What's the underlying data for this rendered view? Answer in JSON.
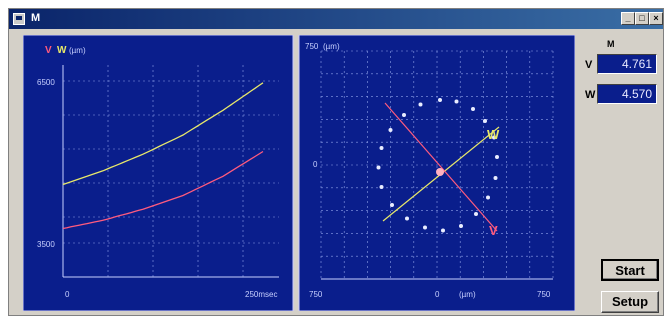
{
  "window": {
    "title": "M"
  },
  "readout": {
    "unit": "M",
    "v_label": "V",
    "v_value": "4.761",
    "w_label": "W",
    "w_value": "4.570"
  },
  "buttons": {
    "start": "Start",
    "setup": "Setup"
  },
  "colors": {
    "panel": "#0a1e8c",
    "v_series": "#ff5b7e",
    "w_series": "#e8e86a",
    "grid": "#8ea0e8"
  },
  "chart_data": [
    {
      "type": "line",
      "legend": [
        "V",
        "W"
      ],
      "legend_unit": "(µm)",
      "ylabel_top": "6500",
      "ylabel_bottom": "3500",
      "x_start": "0",
      "x_end": "250msec",
      "ylim": [
        3500,
        6500
      ],
      "x": [
        0,
        50,
        100,
        150,
        200,
        250
      ],
      "series": [
        {
          "name": "W",
          "values": [
            4600,
            4850,
            5150,
            5500,
            5950,
            6450
          ]
        },
        {
          "name": "V",
          "values": [
            3800,
            3950,
            4150,
            4400,
            4750,
            5200
          ]
        }
      ]
    },
    {
      "type": "scatter",
      "y_top": "750",
      "y_unit": "(µm)",
      "y_mid": "0",
      "x_left": "750",
      "x_mid": "0",
      "x_unit": "(µm)",
      "x_right": "750",
      "xlim": [
        -750,
        750
      ],
      "ylim": [
        -750,
        750
      ],
      "w_label": "W",
      "v_label": "V",
      "orbit": [
        [
          0,
          480
        ],
        [
          110,
          470
        ],
        [
          220,
          420
        ],
        [
          300,
          340
        ],
        [
          360,
          230
        ],
        [
          380,
          100
        ],
        [
          370,
          -40
        ],
        [
          320,
          -170
        ],
        [
          240,
          -280
        ],
        [
          140,
          -360
        ],
        [
          20,
          -390
        ],
        [
          -100,
          -370
        ],
        [
          -220,
          -310
        ],
        [
          -320,
          -220
        ],
        [
          -390,
          -100
        ],
        [
          -410,
          30
        ],
        [
          -390,
          160
        ],
        [
          -330,
          280
        ],
        [
          -240,
          380
        ],
        [
          -130,
          450
        ]
      ]
    }
  ]
}
